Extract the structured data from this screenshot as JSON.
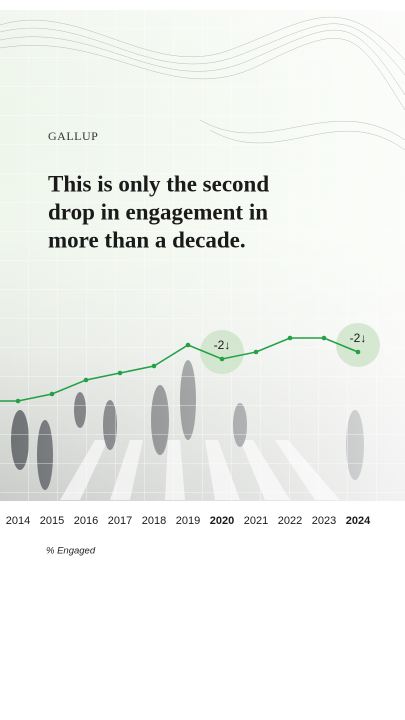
{
  "brand": "GALLUP",
  "chart_data": {
    "type": "line",
    "title": [
      "This is only the second",
      "drop in engagement in",
      "more than a decade."
    ],
    "categories": [
      null,
      "2014",
      "2015",
      "2016",
      "2017",
      "2018",
      "2019",
      "2020",
      "2021",
      "2022",
      "2023",
      "2024"
    ],
    "series": [
      {
        "name": "% Engaged",
        "color": "#22a045",
        "values": [
          14,
          14,
          15,
          17,
          18,
          19,
          22,
          20,
          21,
          23,
          23,
          21
        ]
      }
    ],
    "ylim": [
      14,
      23
    ],
    "annotations": [
      {
        "category": "2020",
        "text": "-2↓"
      },
      {
        "category": "2024",
        "text": "-2↓"
      }
    ]
  }
}
